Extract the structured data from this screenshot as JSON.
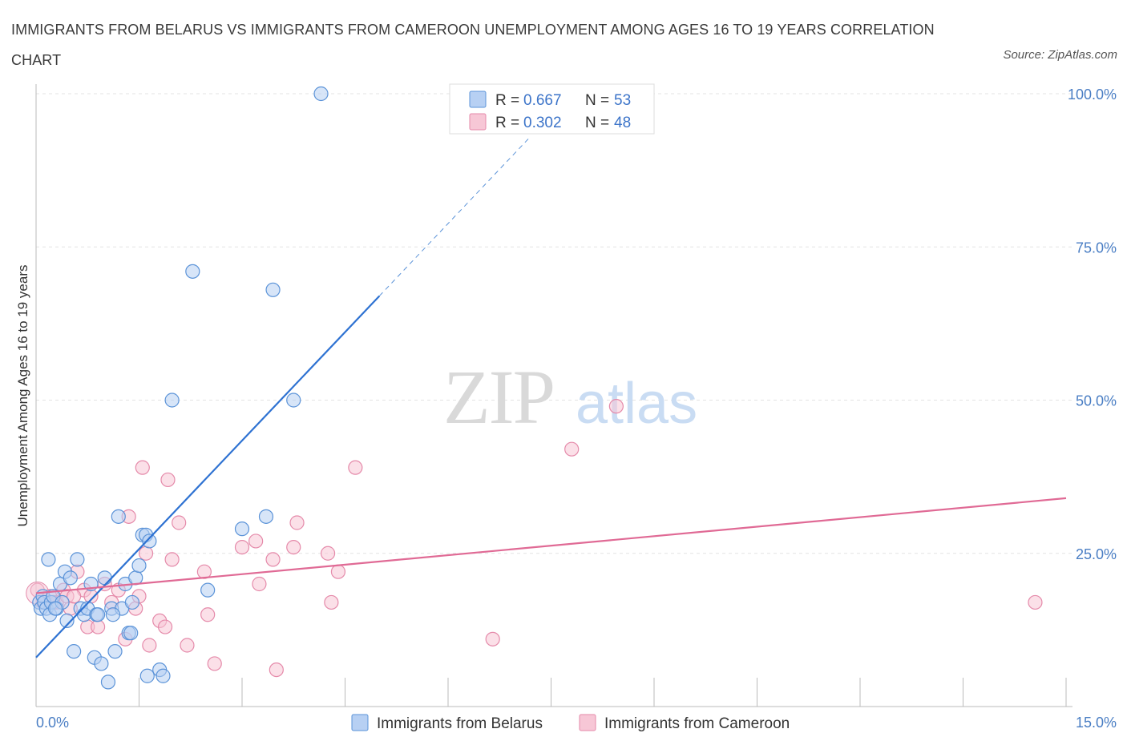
{
  "title": "IMMIGRANTS FROM BELARUS VS IMMIGRANTS FROM CAMEROON UNEMPLOYMENT AMONG AGES 16 TO 19 YEARS CORRELATION CHART",
  "source": "Source: ZipAtlas.com",
  "watermark": {
    "zip": "ZIP",
    "atlas": "atlas"
  },
  "colors": {
    "belarus": "#5b93d8",
    "belarus_fill": "#b7d0f3",
    "belarus_line": "#2e72d2",
    "cameroon": "#e58aaa",
    "cameroon_fill": "#f7c7d6",
    "cameroon_line": "#e06a95",
    "tick_text": "#4a7ec4"
  },
  "legend": {
    "r_label": "R =",
    "n_label": "N =",
    "rows": [
      {
        "r": "0.667",
        "n": "53"
      },
      {
        "r": "0.302",
        "n": "48"
      }
    ]
  },
  "chart_data": {
    "type": "scatter",
    "ylabel": "Unemployment Among Ages 16 to 19 years",
    "xlabel": "",
    "xlim": [
      0,
      15
    ],
    "ylim": [
      0,
      100
    ],
    "x_tick_labels": [
      "0.0%",
      "15.0%"
    ],
    "y_tick_labels": [
      "25.0%",
      "50.0%",
      "75.0%",
      "100.0%"
    ],
    "y_ticks": [
      25,
      50,
      75,
      100
    ],
    "grid": true,
    "legend_position": "top-center",
    "series": [
      {
        "name": "Immigrants from Belarus",
        "r": 0.667,
        "n": 53,
        "trend": {
          "x0": 0.0,
          "y0": 8.0,
          "x1": 5.0,
          "y1": 67.0,
          "dashed_to_x": 7.2,
          "dashed_to_y": 93.0
        },
        "points": [
          [
            0.05,
            17
          ],
          [
            0.07,
            16
          ],
          [
            0.1,
            18
          ],
          [
            0.12,
            17
          ],
          [
            0.15,
            16
          ],
          [
            0.18,
            24
          ],
          [
            0.2,
            15
          ],
          [
            0.22,
            17
          ],
          [
            0.25,
            18
          ],
          [
            0.3,
            16
          ],
          [
            0.35,
            20
          ],
          [
            0.38,
            17
          ],
          [
            0.42,
            22
          ],
          [
            0.45,
            14
          ],
          [
            0.5,
            21
          ],
          [
            0.55,
            9
          ],
          [
            0.6,
            24
          ],
          [
            0.65,
            16
          ],
          [
            0.7,
            15
          ],
          [
            0.75,
            16
          ],
          [
            0.8,
            20
          ],
          [
            0.85,
            8
          ],
          [
            0.88,
            15
          ],
          [
            0.95,
            7
          ],
          [
            1.0,
            21
          ],
          [
            1.05,
            4
          ],
          [
            1.1,
            16
          ],
          [
            1.15,
            9
          ],
          [
            1.2,
            31
          ],
          [
            1.25,
            16
          ],
          [
            1.3,
            20
          ],
          [
            1.35,
            12
          ],
          [
            1.38,
            12
          ],
          [
            1.4,
            17
          ],
          [
            1.45,
            21
          ],
          [
            1.5,
            23
          ],
          [
            1.55,
            28
          ],
          [
            1.6,
            28
          ],
          [
            1.62,
            5
          ],
          [
            1.65,
            27
          ],
          [
            1.8,
            6
          ],
          [
            1.85,
            5
          ],
          [
            1.98,
            50
          ],
          [
            2.28,
            71
          ],
          [
            2.5,
            19
          ],
          [
            3.0,
            29
          ],
          [
            3.35,
            31
          ],
          [
            3.45,
            68
          ],
          [
            3.75,
            50
          ],
          [
            4.15,
            100
          ],
          [
            1.12,
            15
          ],
          [
            0.9,
            15
          ],
          [
            0.28,
            16
          ]
        ]
      },
      {
        "name": "Immigrants from Cameroon",
        "r": 0.302,
        "n": 48,
        "trend": {
          "x0": 0.0,
          "y0": 18.5,
          "x1": 15.0,
          "y1": 34.0
        },
        "points": [
          [
            0.02,
            19
          ],
          [
            0.1,
            17
          ],
          [
            0.2,
            18
          ],
          [
            0.3,
            17
          ],
          [
            0.4,
            19
          ],
          [
            0.45,
            18
          ],
          [
            0.5,
            16
          ],
          [
            0.6,
            22
          ],
          [
            0.7,
            19
          ],
          [
            0.75,
            13
          ],
          [
            0.8,
            18
          ],
          [
            0.9,
            13
          ],
          [
            1.0,
            20
          ],
          [
            1.1,
            17
          ],
          [
            1.2,
            19
          ],
          [
            1.3,
            11
          ],
          [
            1.35,
            31
          ],
          [
            1.45,
            16
          ],
          [
            1.5,
            18
          ],
          [
            1.55,
            39
          ],
          [
            1.6,
            25
          ],
          [
            1.65,
            10
          ],
          [
            1.8,
            14
          ],
          [
            1.88,
            13
          ],
          [
            1.92,
            37
          ],
          [
            1.98,
            24
          ],
          [
            2.08,
            30
          ],
          [
            2.2,
            10
          ],
          [
            2.45,
            22
          ],
          [
            2.5,
            15
          ],
          [
            2.6,
            7
          ],
          [
            3.0,
            26
          ],
          [
            3.2,
            27
          ],
          [
            3.25,
            20
          ],
          [
            3.45,
            24
          ],
          [
            3.5,
            6
          ],
          [
            3.75,
            26
          ],
          [
            3.8,
            30
          ],
          [
            4.25,
            25
          ],
          [
            4.3,
            17
          ],
          [
            4.4,
            22
          ],
          [
            4.65,
            39
          ],
          [
            6.65,
            11
          ],
          [
            7.8,
            42
          ],
          [
            8.45,
            49
          ],
          [
            14.55,
            17
          ],
          [
            0.55,
            18
          ],
          [
            0.25,
            17
          ]
        ]
      }
    ]
  },
  "bottom_legend": [
    "Immigrants from Belarus",
    "Immigrants from Cameroon"
  ]
}
